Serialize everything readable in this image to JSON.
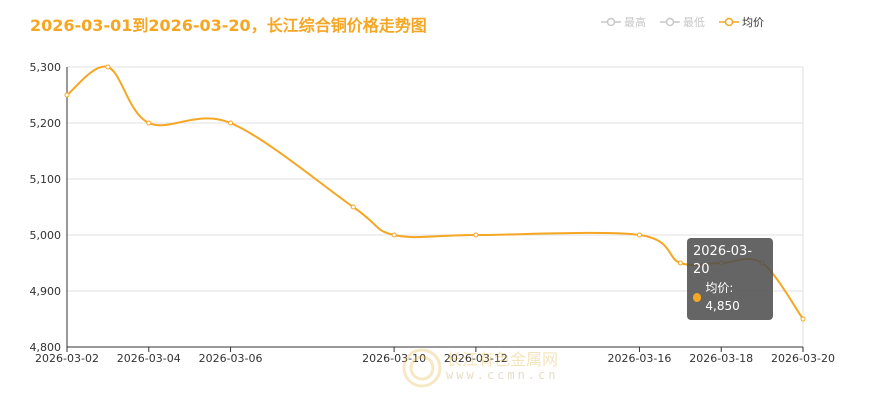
{
  "colors": {
    "title": "#f5a623",
    "series_avg": "#f5a623",
    "series_max": "#c7c7c7",
    "series_min": "#c7c7c7",
    "grid": "#e0e0e0",
    "axis": "#333333",
    "tooltip_bg": "#555555"
  },
  "legend": {
    "items": [
      {
        "label": "最高",
        "active": false
      },
      {
        "label": "最低",
        "active": false
      },
      {
        "label": "均价",
        "active": true
      }
    ]
  },
  "tooltip": {
    "date": "2026-03-20",
    "label": "均价: 4,850"
  },
  "watermark": {
    "text": "长江有色金属网",
    "url": "www.ccmn.cn"
  },
  "chart_data": {
    "type": "line",
    "title": "2026-03-01到2026-03-20，长江综合铜价格走势图",
    "xlabel": "",
    "ylabel": "",
    "ylim": [
      4800,
      5300
    ],
    "yticks": [
      4800,
      4900,
      5000,
      5100,
      5200,
      5300
    ],
    "y_tick_labels": [
      "4,800",
      "4,900",
      "5,000",
      "5,100",
      "5,200",
      "5,300"
    ],
    "x_tick_labels": [
      "2026-03-02",
      "2026-03-04",
      "2026-03-06",
      "2026-03-10",
      "2026-03-12",
      "2026-03-16",
      "2026-03-18",
      "2026-03-20"
    ],
    "grid": true,
    "legend_position": "top-right",
    "x": [
      "2026-03-02",
      "2026-03-03",
      "2026-03-04",
      "2026-03-06",
      "2026-03-09",
      "2026-03-10",
      "2026-03-12",
      "2026-03-16",
      "2026-03-17",
      "2026-03-18",
      "2026-03-19",
      "2026-03-20"
    ],
    "series": [
      {
        "name": "均价",
        "values": [
          5250,
          5300,
          5200,
          5200,
          5050,
          5000,
          5000,
          5000,
          4950,
          4950,
          4950,
          4850
        ]
      }
    ]
  }
}
